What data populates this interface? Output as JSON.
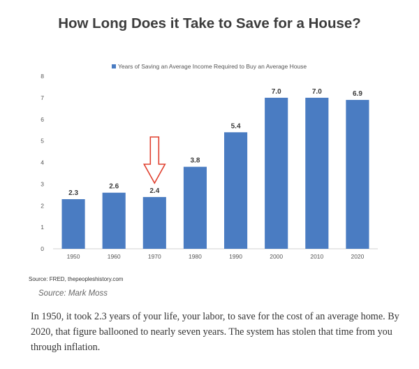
{
  "title": "How Long Does it Take to Save for a House?",
  "chart_data": {
    "type": "bar",
    "categories": [
      "1950",
      "1960",
      "1970",
      "1980",
      "1990",
      "2000",
      "2010",
      "2020"
    ],
    "series": [
      {
        "name": "Years of Saving an Average Income Required to Buy an Average House",
        "values": [
          2.3,
          2.6,
          2.4,
          3.8,
          5.4,
          7.0,
          7.0,
          6.9
        ],
        "labels": [
          "2.3",
          "2.6",
          "2.4",
          "3.8",
          "5.4",
          "7.0",
          "7.0",
          "6.9"
        ]
      }
    ],
    "yticks": [
      "0",
      "1",
      "2",
      "3",
      "4",
      "5",
      "6",
      "7",
      "8"
    ],
    "ylim": [
      0,
      8
    ],
    "grid": false,
    "legend_position": "top",
    "bar_color": "#4a7cc2",
    "annotation": {
      "type": "down-arrow",
      "category": "1970",
      "color": "#e0402f"
    }
  },
  "source_text": "Source: FRED, thepeopleshistory.com",
  "credit_text": "Source: Mark Moss",
  "caption": "In 1950, it took 2.3 years of your life, your labor, to save for the cost of an average home. By 2020, that figure ballooned to nearly seven years. The system has stolen that time from you through inflation."
}
